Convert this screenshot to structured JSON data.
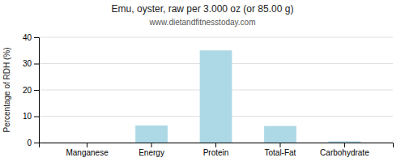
{
  "chart_data": {
    "type": "bar",
    "title": "Emu, oyster, raw per 3.000 oz (or 85.00 g)",
    "subtitle": "www.dietandfitnesstoday.com",
    "categories": [
      "Manganese",
      "Energy",
      "Protein",
      "Total-Fat",
      "Carbohydrate"
    ],
    "values": [
      0,
      6.5,
      35,
      6.3,
      0.5
    ],
    "color": "#add8e6",
    "ylabel": "Percentage of RDH (%)",
    "ylim": [
      0,
      40
    ],
    "yticks": [
      0,
      10,
      20,
      30,
      40
    ],
    "grid": true
  }
}
